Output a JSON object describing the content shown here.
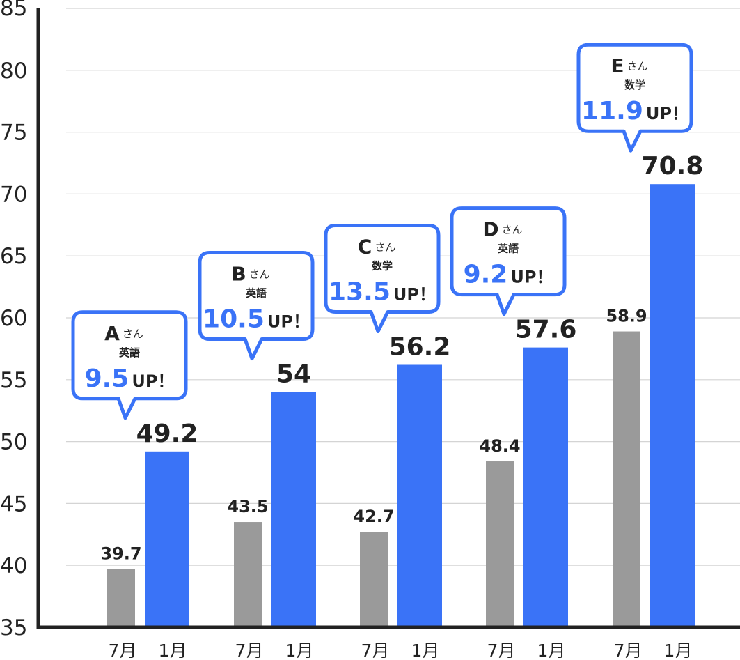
{
  "chart_data": {
    "type": "bar",
    "ylim": [
      35,
      85
    ],
    "yticks": [
      "35",
      "40",
      "45",
      "50",
      "55",
      "60",
      "65",
      "70",
      "75",
      "80",
      "85"
    ],
    "grid": true,
    "colors": {
      "july": "#9a9a9a",
      "january": "#3a73f7",
      "callout_border": "#3a73f7",
      "axis": "#222222",
      "grid": "#d4d4d4"
    },
    "series": [
      {
        "name": "7月",
        "values": [
          39.7,
          43.5,
          42.7,
          48.4,
          58.9
        ]
      },
      {
        "name": "1月",
        "values": [
          49.2,
          54,
          56.2,
          57.6,
          70.8
        ]
      }
    ],
    "groups": [
      {
        "student": "A",
        "honorific": "さん",
        "subject": "英語",
        "gain": "9.5",
        "up": "UP！",
        "july_label": "39.7",
        "jan_label": "49.2",
        "x_july": "7月",
        "x_jan": "1月"
      },
      {
        "student": "B",
        "honorific": "さん",
        "subject": "英語",
        "gain": "10.5",
        "up": "UP！",
        "july_label": "43.5",
        "jan_label": "54",
        "x_july": "7月",
        "x_jan": "1月"
      },
      {
        "student": "C",
        "honorific": "さん",
        "subject": "数学",
        "gain": "13.5",
        "up": "UP！",
        "july_label": "42.7",
        "jan_label": "56.2",
        "x_july": "7月",
        "x_jan": "1月"
      },
      {
        "student": "D",
        "honorific": "さん",
        "subject": "英語",
        "gain": "9.2",
        "up": "UP！",
        "july_label": "48.4",
        "jan_label": "57.6",
        "x_july": "7月",
        "x_jan": "1月"
      },
      {
        "student": "E",
        "honorific": "さん",
        "subject": "数学",
        "gain": "11.9",
        "up": "UP！",
        "july_label": "58.9",
        "jan_label": "70.8",
        "x_july": "7月",
        "x_jan": "1月"
      }
    ]
  }
}
